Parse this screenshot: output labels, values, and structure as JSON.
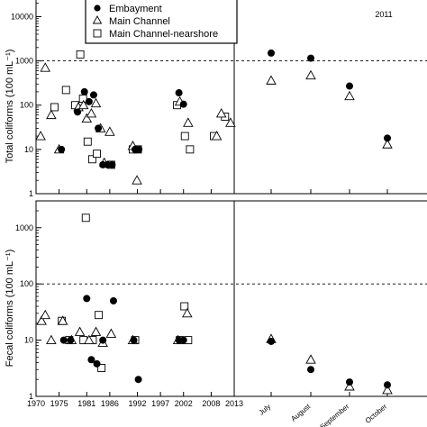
{
  "chart_data": {
    "type": "scatter",
    "year_label": "2011",
    "y_scale": "log",
    "reference_line": 1000,
    "legend": {
      "placement": "top-left",
      "entries": [
        {
          "name": "Embayment",
          "marker": "filled-circle"
        },
        {
          "name": "Main Channel",
          "marker": "open-triangle"
        },
        {
          "name": "Main Channel-nearshore",
          "marker": "open-square"
        }
      ]
    },
    "x_years": {
      "ticks": [
        "1970",
        "1975",
        "1981",
        "1986",
        "1992",
        "1997",
        "2002",
        "2008",
        "2013"
      ],
      "xlim": [
        1970,
        2013
      ]
    },
    "x_months": {
      "ticks": [
        "July",
        "August",
        "September",
        "October"
      ]
    },
    "panels": [
      {
        "id": "total",
        "ylabel": "Total coliforms (100 mL⁻¹)",
        "yticks": [
          "1",
          "10",
          "100",
          "1000",
          "10000"
        ],
        "ylim": [
          1,
          30000
        ],
        "reference_line": 1000,
        "years": {
          "Embayment": [
            {
              "x": 1975.5,
              "y": 10
            },
            {
              "x": 1979.0,
              "y": 70
            },
            {
              "x": 1980.5,
              "y": 200
            },
            {
              "x": 1981.5,
              "y": 120
            },
            {
              "x": 1982.5,
              "y": 170
            },
            {
              "x": 1983.5,
              "y": 30
            },
            {
              "x": 1984.5,
              "y": 4.5
            },
            {
              "x": 1985.5,
              "y": 4.5
            },
            {
              "x": 1986.5,
              "y": 4.5
            },
            {
              "x": 1991.5,
              "y": 10
            },
            {
              "x": 1992.3,
              "y": 10
            },
            {
              "x": 2001.0,
              "y": 190
            },
            {
              "x": 2002.0,
              "y": 105
            }
          ],
          "Main Channel": [
            {
              "x": 1971.0,
              "y": 20
            },
            {
              "x": 1972.0,
              "y": 700
            },
            {
              "x": 1973.3,
              "y": 60
            },
            {
              "x": 1975.0,
              "y": 10
            },
            {
              "x": 1979.2,
              "y": 90
            },
            {
              "x": 1980.3,
              "y": 100
            },
            {
              "x": 1981.0,
              "y": 50
            },
            {
              "x": 1982.0,
              "y": 65
            },
            {
              "x": 1983.0,
              "y": 110
            },
            {
              "x": 1984.0,
              "y": 30
            },
            {
              "x": 1984.8,
              "y": 5
            },
            {
              "x": 1986.0,
              "y": 25
            },
            {
              "x": 1991.0,
              "y": 12
            },
            {
              "x": 1991.9,
              "y": 2
            },
            {
              "x": 2001.2,
              "y": 120
            },
            {
              "x": 2003.0,
              "y": 40
            },
            {
              "x": 2009.2,
              "y": 20
            },
            {
              "x": 2010.2,
              "y": 65
            },
            {
              "x": 2012.2,
              "y": 40
            }
          ],
          "Main Channel-nearshore": [
            {
              "x": 1974.0,
              "y": 90
            },
            {
              "x": 1976.5,
              "y": 220
            },
            {
              "x": 1978.5,
              "y": 100
            },
            {
              "x": 1979.6,
              "y": 1400
            },
            {
              "x": 1980.2,
              "y": 140
            },
            {
              "x": 1981.2,
              "y": 15
            },
            {
              "x": 1982.2,
              "y": 6
            },
            {
              "x": 1983.2,
              "y": 8
            },
            {
              "x": 1986.3,
              "y": 4.5
            },
            {
              "x": 1991.0,
              "y": 10
            },
            {
              "x": 1992.1,
              "y": 10
            },
            {
              "x": 2000.6,
              "y": 100
            },
            {
              "x": 2002.3,
              "y": 20
            },
            {
              "x": 2003.4,
              "y": 10
            },
            {
              "x": 2008.6,
              "y": 20
            },
            {
              "x": 2011.0,
              "y": 55
            }
          ]
        },
        "months": {
          "Embayment": [
            {
              "x": "July",
              "y": 1500
            },
            {
              "x": "August",
              "y": 1150
            },
            {
              "x": "September",
              "y": 270
            },
            {
              "x": "October",
              "y": 18
            }
          ],
          "Main Channel": [
            {
              "x": "July",
              "y": 360
            },
            {
              "x": "August",
              "y": 470
            },
            {
              "x": "September",
              "y": 160
            },
            {
              "x": "October",
              "y": 13
            }
          ]
        }
      },
      {
        "id": "fecal",
        "ylabel": "Fecal coliforms (100 mL⁻¹)",
        "yticks": [
          "1",
          "10",
          "100",
          "1000"
        ],
        "ylim": [
          1,
          3000
        ],
        "reference_line": 100,
        "years": {
          "Embayment": [
            {
              "x": 1976.0,
              "y": 10
            },
            {
              "x": 1977.5,
              "y": 10
            },
            {
              "x": 1981.0,
              "y": 55
            },
            {
              "x": 1982.0,
              "y": 4.5
            },
            {
              "x": 1983.2,
              "y": 3.8
            },
            {
              "x": 1984.5,
              "y": 10
            },
            {
              "x": 1986.8,
              "y": 50
            },
            {
              "x": 1991.2,
              "y": 10
            },
            {
              "x": 1992.2,
              "y": 2
            },
            {
              "x": 2001.0,
              "y": 10
            },
            {
              "x": 2002.0,
              "y": 10
            }
          ],
          "Main Channel": [
            {
              "x": 1971.2,
              "y": 22
            },
            {
              "x": 1972.0,
              "y": 28
            },
            {
              "x": 1973.3,
              "y": 10
            },
            {
              "x": 1975.8,
              "y": 22
            },
            {
              "x": 1977.7,
              "y": 10
            },
            {
              "x": 1979.5,
              "y": 14
            },
            {
              "x": 1981.5,
              "y": 10
            },
            {
              "x": 1983.0,
              "y": 14
            },
            {
              "x": 1984.5,
              "y": 9
            },
            {
              "x": 1986.3,
              "y": 13
            },
            {
              "x": 1991.0,
              "y": 10
            },
            {
              "x": 2000.8,
              "y": 10
            },
            {
              "x": 2002.8,
              "y": 30
            }
          ],
          "Main Channel-nearshore": [
            {
              "x": 1975.6,
              "y": 22
            },
            {
              "x": 1977.2,
              "y": 10
            },
            {
              "x": 1980.3,
              "y": 10
            },
            {
              "x": 1980.8,
              "y": 1500
            },
            {
              "x": 1982.3,
              "y": 10
            },
            {
              "x": 1983.6,
              "y": 28
            },
            {
              "x": 1984.2,
              "y": 3.2
            },
            {
              "x": 1991.5,
              "y": 10
            },
            {
              "x": 2001.2,
              "y": 10
            },
            {
              "x": 2002.2,
              "y": 40
            },
            {
              "x": 2003.0,
              "y": 10
            }
          ]
        },
        "months": {
          "Embayment": [
            {
              "x": "July",
              "y": 9.5
            },
            {
              "x": "August",
              "y": 3
            },
            {
              "x": "September",
              "y": 1.8
            },
            {
              "x": "October",
              "y": 1.6
            }
          ],
          "Main Channel": [
            {
              "x": "July",
              "y": 10.5
            },
            {
              "x": "August",
              "y": 4.5
            },
            {
              "x": "September",
              "y": 1.5
            },
            {
              "x": "October",
              "y": 1.3
            }
          ]
        }
      }
    ]
  }
}
